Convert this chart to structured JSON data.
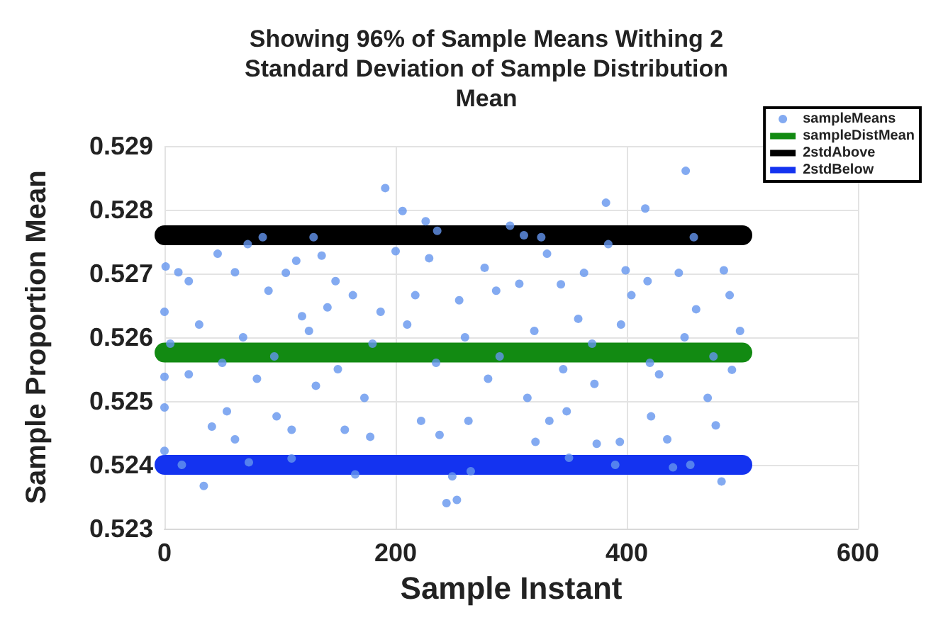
{
  "chart_data": {
    "type": "scatter",
    "title": "Showing 96% of Sample Means Withing 2 Standard Deviation of Sample Distribution Mean",
    "xlabel": "Sample Instant",
    "ylabel": "Sample Proportion Mean",
    "xlim": [
      0,
      600
    ],
    "xticks": [
      0,
      200,
      400,
      600
    ],
    "ylim": [
      0.523,
      0.529
    ],
    "yticks": [
      0.523,
      0.524,
      0.525,
      0.526,
      0.527,
      0.528,
      0.529
    ],
    "grid": true,
    "legend": "top right",
    "marker": "circle",
    "series": [
      {
        "name": "sampleMeans",
        "color": "#6495ed",
        "x": [
          1,
          0,
          0,
          0,
          0,
          12,
          21,
          21,
          34,
          41,
          46,
          54,
          61,
          61,
          72,
          73,
          80,
          85,
          90,
          97,
          105,
          110,
          114,
          119,
          129,
          131,
          136,
          141,
          148,
          156,
          163,
          165,
          173,
          178,
          187,
          191,
          200,
          206,
          217,
          222,
          226,
          229,
          236,
          238,
          244,
          249,
          253,
          255,
          263,
          277,
          280,
          287,
          299,
          307,
          311,
          314,
          321,
          326,
          331,
          333,
          343,
          348,
          350,
          358,
          363,
          372,
          374,
          382,
          384,
          394,
          399,
          404,
          416,
          418,
          421,
          428,
          435,
          440,
          445,
          451,
          458,
          460,
          470,
          477,
          482,
          484,
          489,
          491,
          5,
          30,
          50,
          68,
          95,
          125,
          150,
          180,
          210,
          235,
          260,
          290,
          320,
          345,
          370,
          395,
          420,
          450,
          475,
          498,
          15,
          110,
          265,
          390,
          455
        ],
        "values": [
          0.52711,
          0.5264,
          0.52538,
          0.5249,
          0.52422,
          0.52702,
          0.52688,
          0.52542,
          0.52367,
          0.5246,
          0.52731,
          0.52484,
          0.5244,
          0.52702,
          0.52746,
          0.52404,
          0.52535,
          0.52757,
          0.52673,
          0.52476,
          0.52701,
          0.52455,
          0.5272,
          0.52633,
          0.52757,
          0.52524,
          0.52728,
          0.52647,
          0.52688,
          0.52455,
          0.52666,
          0.52385,
          0.52505,
          0.52444,
          0.5264,
          0.52834,
          0.52735,
          0.52798,
          0.52666,
          0.52469,
          0.52782,
          0.52724,
          0.52767,
          0.52447,
          0.5234,
          0.52382,
          0.52345,
          0.52658,
          0.52469,
          0.52709,
          0.52535,
          0.52673,
          0.52775,
          0.52684,
          0.5276,
          0.52505,
          0.52436,
          0.52757,
          0.52731,
          0.52469,
          0.52683,
          0.52484,
          0.52411,
          0.52629,
          0.52701,
          0.52527,
          0.52433,
          0.52811,
          0.52746,
          0.52436,
          0.52705,
          0.52666,
          0.52802,
          0.52688,
          0.52476,
          0.52542,
          0.5244,
          0.52396,
          0.52701,
          0.52861,
          0.52757,
          0.52644,
          0.52505,
          0.52462,
          0.52374,
          0.52705,
          0.52666,
          0.52549,
          0.5259,
          0.5262,
          0.5256,
          0.526,
          0.5257,
          0.5261,
          0.5255,
          0.5259,
          0.5262,
          0.5256,
          0.526,
          0.5257,
          0.5261,
          0.5255,
          0.5259,
          0.5262,
          0.5256,
          0.526,
          0.5257,
          0.5261,
          0.524,
          0.5241,
          0.5239,
          0.524,
          0.524
        ]
      },
      {
        "name": "sampleDistMean",
        "type": "line",
        "marker": "none",
        "color": "#128a12",
        "line_style": "solid",
        "x": [
          0,
          500
        ],
        "values": [
          0.52576,
          0.52576
        ]
      },
      {
        "name": "2stdAbove",
        "type": "line",
        "marker": "none",
        "color": "#000000",
        "line_style": "solid",
        "x": [
          0,
          500
        ],
        "values": [
          0.5276,
          0.5276
        ]
      },
      {
        "name": "2stdBelow",
        "type": "line",
        "marker": "none",
        "color": "#1433f0",
        "line_style": "solid",
        "x": [
          0,
          500
        ],
        "values": [
          0.524,
          0.524
        ]
      }
    ]
  }
}
